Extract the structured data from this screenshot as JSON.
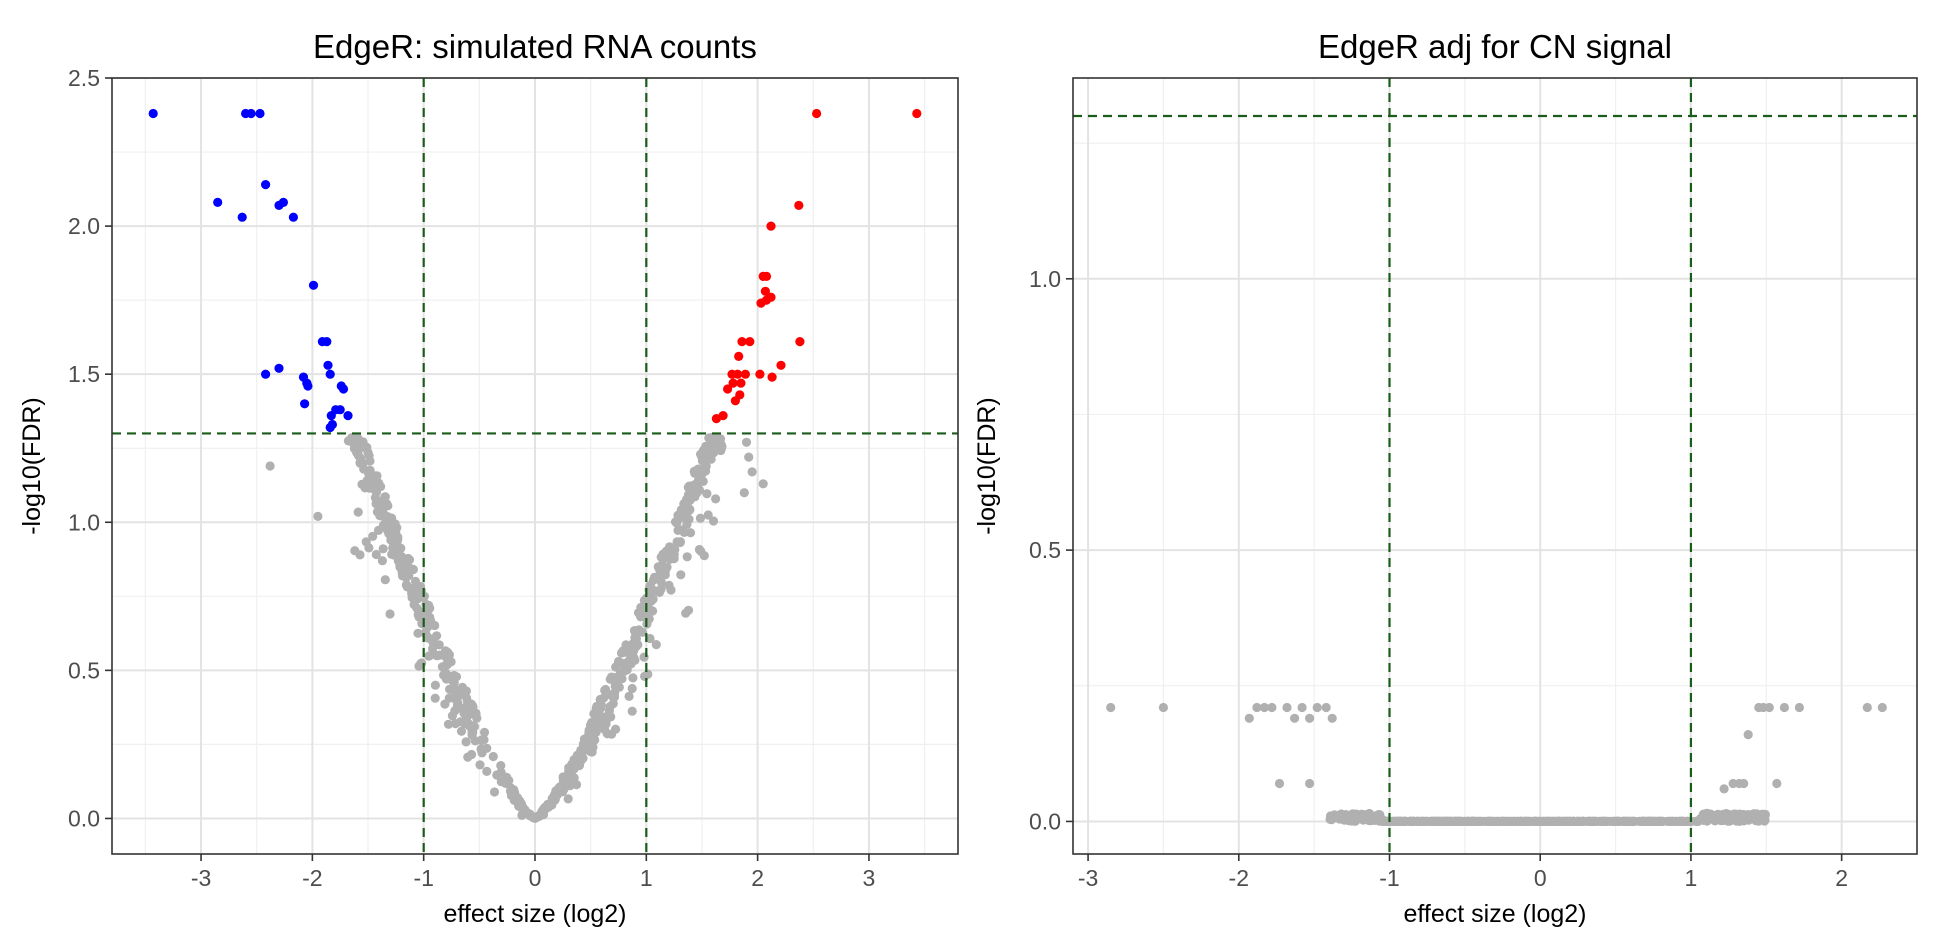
{
  "chart_data": [
    {
      "type": "scatter",
      "title": "EdgeR: simulated RNA counts",
      "xlabel": "effect size (log2)",
      "ylabel": "-log10(FDR)",
      "xlim": [
        -3.8,
        3.8
      ],
      "ylim": [
        -0.12,
        2.5
      ],
      "x_ticks": [
        -3,
        -2,
        -1,
        0,
        1,
        2,
        3
      ],
      "y_ticks": [
        0.0,
        0.5,
        1.0,
        1.5,
        2.0,
        2.5
      ],
      "x_tick_labels": [
        "-3",
        "-2",
        "-1",
        "0",
        "1",
        "2",
        "3"
      ],
      "y_tick_labels": [
        "0.0",
        "0.5",
        "1.0",
        "1.5",
        "2.0",
        "2.5"
      ],
      "grid": true,
      "threshold_lines": {
        "vertical": [
          -1,
          1
        ],
        "horizontal": [
          1.3
        ],
        "color": "#1a5c1a",
        "style": "dashed"
      },
      "colors": {
        "down": "#0000ff",
        "up": "#ff0000",
        "ns": "#b0b0b0"
      },
      "series": [
        {
          "group": "down",
          "color": "#0000ff",
          "points": [
            [
              -3.43,
              2.38
            ],
            [
              -2.6,
              2.38
            ],
            [
              -2.55,
              2.38
            ],
            [
              -2.47,
              2.38
            ],
            [
              -2.85,
              2.08
            ],
            [
              -2.63,
              2.03
            ],
            [
              -2.42,
              2.14
            ],
            [
              -2.3,
              2.07
            ],
            [
              -2.26,
              2.08
            ],
            [
              -2.17,
              2.03
            ],
            [
              -1.99,
              1.8
            ],
            [
              -1.91,
              1.61
            ],
            [
              -1.87,
              1.61
            ],
            [
              -1.86,
              1.53
            ],
            [
              -1.84,
              1.5
            ],
            [
              -2.42,
              1.5
            ],
            [
              -2.3,
              1.52
            ],
            [
              -2.08,
              1.49
            ],
            [
              -2.05,
              1.47
            ],
            [
              -2.04,
              1.46
            ],
            [
              -2.07,
              1.4
            ],
            [
              -1.74,
              1.46
            ],
            [
              -1.72,
              1.45
            ],
            [
              -1.75,
              1.38
            ],
            [
              -1.79,
              1.38
            ],
            [
              -1.83,
              1.36
            ],
            [
              -1.68,
              1.36
            ],
            [
              -1.82,
              1.33
            ],
            [
              -1.84,
              1.32
            ]
          ]
        },
        {
          "group": "up",
          "color": "#ff0000",
          "points": [
            [
              2.53,
              2.38
            ],
            [
              3.43,
              2.38
            ],
            [
              2.37,
              2.07
            ],
            [
              2.12,
              2.0
            ],
            [
              2.05,
              1.83
            ],
            [
              2.08,
              1.83
            ],
            [
              2.07,
              1.78
            ],
            [
              2.12,
              1.76
            ],
            [
              2.08,
              1.75
            ],
            [
              2.03,
              1.74
            ],
            [
              1.93,
              1.61
            ],
            [
              1.86,
              1.61
            ],
            [
              2.38,
              1.61
            ],
            [
              1.83,
              1.56
            ],
            [
              1.89,
              1.5
            ],
            [
              1.82,
              1.5
            ],
            [
              1.77,
              1.5
            ],
            [
              1.85,
              1.47
            ],
            [
              1.78,
              1.47
            ],
            [
              1.73,
              1.45
            ],
            [
              2.02,
              1.5
            ],
            [
              2.13,
              1.49
            ],
            [
              2.21,
              1.53
            ],
            [
              1.84,
              1.43
            ],
            [
              1.8,
              1.41
            ],
            [
              1.69,
              1.36
            ],
            [
              1.63,
              1.35
            ]
          ]
        }
      ],
      "ns_points": "V-shaped band of grey points following -log10(FDR) ≈ 0.7·|effect|^1.3 from (0,0) up to ≈1.3 near |effect|≈1.7"
    },
    {
      "type": "scatter",
      "title": "EdgeR adj for CN signal",
      "xlabel": "effect size (log2)",
      "ylabel": "-log10(FDR)",
      "xlim": [
        -3.1,
        2.5
      ],
      "ylim": [
        -0.06,
        1.37
      ],
      "x_ticks": [
        -3,
        -2,
        -1,
        0,
        1,
        2
      ],
      "y_ticks": [
        0.0,
        0.5,
        1.0
      ],
      "x_tick_labels": [
        "-3",
        "-2",
        "-1",
        "0",
        "1",
        "2"
      ],
      "y_tick_labels": [
        "0.0",
        "0.5",
        "1.0"
      ],
      "grid": true,
      "threshold_lines": {
        "vertical": [
          -1,
          1
        ],
        "horizontal": [
          1.3
        ],
        "color": "#1a5c1a",
        "style": "dashed"
      },
      "colors": {
        "ns": "#b0b0b0"
      },
      "series": [
        {
          "group": "ns",
          "color": "#b0b0b0",
          "points": [
            [
              -2.85,
              0.21
            ],
            [
              -2.5,
              0.21
            ],
            [
              -1.93,
              0.19
            ],
            [
              -1.88,
              0.21
            ],
            [
              -1.83,
              0.21
            ],
            [
              -1.78,
              0.21
            ],
            [
              -1.68,
              0.21
            ],
            [
              -1.63,
              0.19
            ],
            [
              -1.58,
              0.21
            ],
            [
              -1.53,
              0.19
            ],
            [
              -1.48,
              0.21
            ],
            [
              -1.42,
              0.21
            ],
            [
              -1.38,
              0.19
            ],
            [
              -1.73,
              0.07
            ],
            [
              -1.53,
              0.07
            ],
            [
              1.22,
              0.06
            ],
            [
              1.28,
              0.07
            ],
            [
              1.32,
              0.07
            ],
            [
              1.35,
              0.07
            ],
            [
              1.38,
              0.16
            ],
            [
              1.45,
              0.21
            ],
            [
              1.48,
              0.21
            ],
            [
              1.52,
              0.21
            ],
            [
              1.62,
              0.21
            ],
            [
              1.72,
              0.21
            ],
            [
              2.17,
              0.21
            ],
            [
              2.27,
              0.21
            ],
            [
              1.57,
              0.07
            ]
          ]
        }
      ],
      "ns_points": "dense band of grey points along -log10(FDR) ≈ 0 from effect -1.4 to 1.5"
    }
  ]
}
